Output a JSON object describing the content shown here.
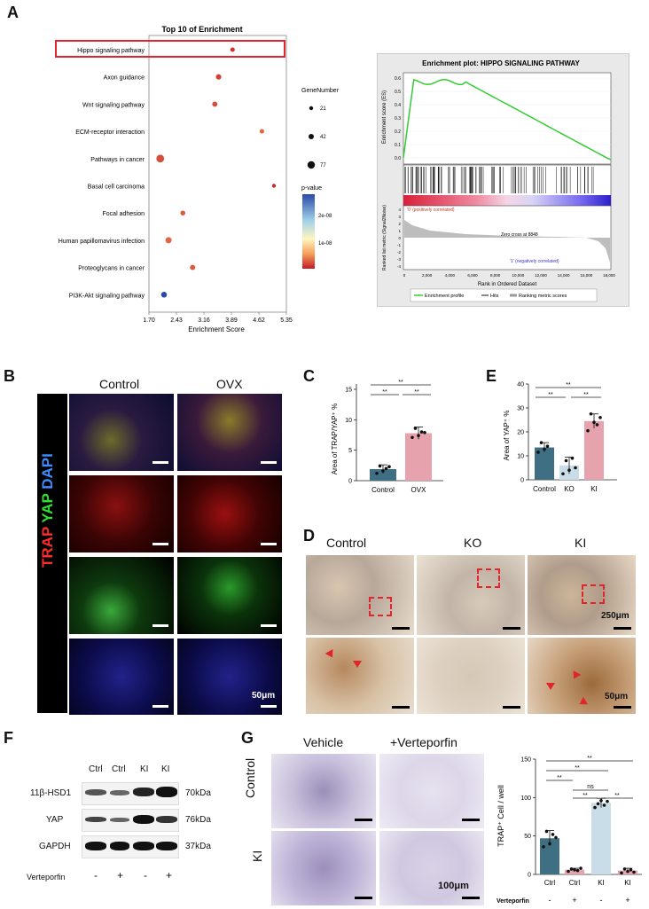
{
  "panelA": {
    "letter": "A",
    "dot_chart": {
      "title": "Top 10 of  Enrichment",
      "xlabel": "Enrichment Score",
      "ticks": [
        "1.70",
        "2.43",
        "3.16",
        "3.89",
        "4.62",
        "5.35"
      ],
      "gene_number_label": "GeneNumber",
      "size_legend": [
        "21",
        "42",
        "77"
      ],
      "pvalue_label": "p-value",
      "pvalue_ticks": [
        "2e-08",
        "1e-08"
      ]
    },
    "enrichment_plot": {
      "title": "Enrichment plot: HIPPO SIGNALING PATHWAY",
      "es_label": "Enrichment score (ES)",
      "es_ticks": [
        "0.6",
        "0.5",
        "0.4",
        "0.3",
        "0.2",
        "0.1",
        "0.0"
      ],
      "rank_label": "Ranked list metric (Signal2Noise)",
      "rank_ticks": [
        "4",
        "3",
        "2",
        "1",
        "0",
        "-1",
        "-2",
        "-3",
        "-4"
      ],
      "pos_label": "'0' (positively correlated)",
      "neg_label": "'1' (negatively correlated)",
      "zero_cross": "Zero cross at 8848",
      "xlabel": "Rank in Ordered Dataset",
      "xticks": [
        "0",
        "2,000",
        "4,000",
        "6,000",
        "8,000",
        "10,000",
        "12,000",
        "14,000",
        "16,000",
        "18,000"
      ],
      "legend": [
        "Enrichment profile",
        "Hits",
        "Ranking metric scores"
      ]
    }
  },
  "panelB": {
    "letter": "B",
    "col_control": "Control",
    "col_ovx": "OVX",
    "stain_trap": "TRAP",
    "stain_yap": "YAP",
    "stain_dapi": "DAPI",
    "scale": "50μm"
  },
  "panelC": {
    "letter": "C",
    "ylabel": "Area of TRAP/YAP⁺ %",
    "yticks": [
      "15",
      "10",
      "5",
      "0"
    ],
    "sig": [
      "**",
      "**",
      "**"
    ]
  },
  "panelD": {
    "letter": "D",
    "cols": [
      "Control",
      "KO",
      "KI"
    ],
    "scale_top": "250μm",
    "scale_bottom": "50μm"
  },
  "panelE": {
    "letter": "E",
    "ylabel": "Area of YAP⁺ %",
    "yticks": [
      "40",
      "30",
      "20",
      "10",
      "0"
    ],
    "sig": [
      "**",
      "**",
      "**"
    ]
  },
  "panelF": {
    "letter": "F",
    "lanes": [
      "Ctrl",
      "Ctrl",
      "KI",
      "KI"
    ],
    "proteins": [
      "11β-HSD1",
      "YAP",
      "GAPDH"
    ],
    "sizes": [
      "70kDa",
      "76kDa",
      "37kDa"
    ],
    "treatment": "Verteporfin",
    "signs": [
      "-",
      "+",
      "-",
      "+"
    ]
  },
  "panelG": {
    "letter": "G",
    "col_vehicle": "Vehicle",
    "col_vp": "+Verteporfin",
    "row_control": "Control",
    "row_ki": "KI",
    "scale": "100μm",
    "ylabel": "TRAP⁺ Cell / well",
    "yticks": [
      "150",
      "100",
      "50",
      "0"
    ],
    "sig": [
      "**",
      "**",
      "**",
      "ns",
      "**",
      "**"
    ],
    "treatment": "Verteporfin",
    "signs": [
      "-",
      "+",
      "-",
      "+"
    ]
  },
  "colors": {
    "bar_blue": "#3f6f82",
    "bar_pink": "#e7a3ad",
    "bar_lightblue": "#c9dde8",
    "es_green": "#33cc33",
    "highlight_red": "#e0262d"
  },
  "chart_data": [
    {
      "type": "scatter",
      "title": "Top 10 of  Enrichment",
      "xlabel": "Enrichment Score",
      "xlim": [
        1.7,
        5.35
      ],
      "categories": [
        "Hippo signaling pathway",
        "Axon guidance",
        "Wnt signaling pathway",
        "ECM-receptor interaction",
        "Pathways in cancer",
        "Basal cell carcinoma",
        "Focal adhesion",
        "Human papillomavirus infection",
        "Proteoglycans in cancer",
        "PI3K-Akt signaling pathway"
      ],
      "x": [
        3.92,
        3.55,
        3.45,
        4.7,
        2.0,
        5.02,
        2.6,
        2.22,
        2.86,
        2.1
      ],
      "gene_number": [
        30,
        42,
        40,
        30,
        77,
        21,
        35,
        55,
        40,
        48
      ],
      "p_value": [
        1e-09,
        1.5e-09,
        2e-09,
        3e-09,
        2e-09,
        6e-10,
        2.5e-09,
        3e-09,
        2.5e-09,
        2.6e-08
      ]
    },
    {
      "type": "bar",
      "ylabel": "Area of TRAP/YAP⁺ %",
      "categories": [
        "Control",
        "OVX"
      ],
      "values": [
        1.9,
        7.8
      ],
      "ylim": [
        0,
        15
      ]
    },
    {
      "type": "bar",
      "ylabel": "Area of YAP⁺ %",
      "categories": [
        "Control",
        "KO",
        "KI"
      ],
      "values": [
        13.5,
        6.0,
        24.5
      ],
      "ylim": [
        0,
        40
      ]
    },
    {
      "type": "bar",
      "ylabel": "TRAP⁺ Cell / well",
      "categories": [
        "Ctrl",
        "Ctrl",
        "KI",
        "KI"
      ],
      "values": [
        47,
        6,
        93,
        5
      ],
      "ylim": [
        0,
        150
      ]
    }
  ]
}
